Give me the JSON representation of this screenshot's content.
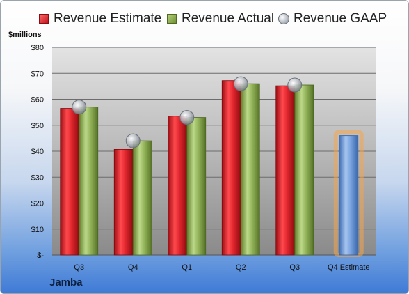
{
  "legend": {
    "estimate_label": "Revenue Estimate",
    "actual_label": "Revenue Actual",
    "gaap_label": "Revenue GAAP"
  },
  "unit_label": "$millions",
  "company_label": "Jamba",
  "colors": {
    "estimate": "#d32027",
    "actual": "#8fae4f",
    "gaap": "#b9bec6",
    "forecast": "#6f9bd8",
    "forecast_glow": "#f5a64a"
  },
  "chart_data": {
    "type": "bar",
    "categories": [
      "Q3",
      "Q4",
      "Q1",
      "Q2",
      "Q3",
      "Q4 Estimate"
    ],
    "series": [
      {
        "name": "Revenue Estimate",
        "values": [
          56.5,
          40.7,
          53.5,
          67.2,
          65.2,
          null
        ]
      },
      {
        "name": "Revenue Actual",
        "values": [
          57.0,
          44.0,
          53.0,
          66.0,
          65.5,
          46.0
        ]
      },
      {
        "name": "Revenue GAAP",
        "values": [
          57.0,
          44.0,
          53.0,
          66.0,
          65.5,
          null
        ]
      }
    ],
    "yticks": [
      "$-",
      "$10",
      "$20",
      "$30",
      "$40",
      "$50",
      "$60",
      "$70",
      "$80"
    ],
    "ylim": [
      0,
      80
    ],
    "ylabel": "$millions",
    "grid": true,
    "legend": "top"
  }
}
